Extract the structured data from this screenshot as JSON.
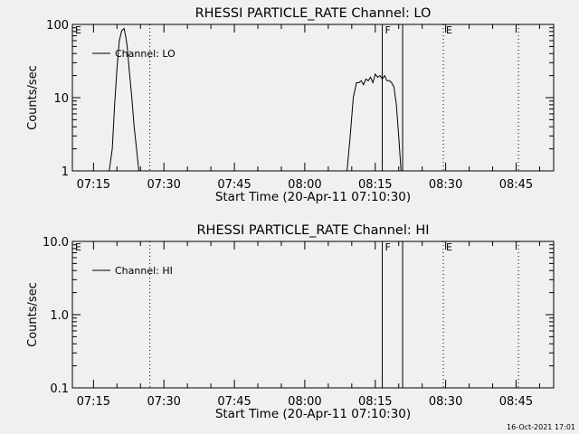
{
  "chart_data": [
    {
      "type": "line",
      "title": "RHESSI PARTICLE_RATE Channel: LO",
      "xlabel": "Start Time (20-Apr-11 07:10:30)",
      "ylabel": "Counts/sec",
      "y_scale": "log",
      "ylim": [
        1,
        100
      ],
      "y_ticks": [
        1,
        10,
        100
      ],
      "y_tick_labels": [
        "1",
        "10",
        "100"
      ],
      "xlim": [
        "07:10:30",
        "08:53:00"
      ],
      "x_ticks": [
        "07:15",
        "07:30",
        "07:45",
        "08:00",
        "08:15",
        "08:30",
        "08:45"
      ],
      "legend": {
        "position": "top-left",
        "entries": [
          "Channel: LO"
        ]
      },
      "grid": false,
      "markers": [
        {
          "time": "07:10:30",
          "label": "E",
          "style": "none"
        },
        {
          "time": "07:27:00",
          "label": "",
          "style": "dotted"
        },
        {
          "time": "08:16:30",
          "label": "F",
          "style": "solid"
        },
        {
          "time": "08:20:50",
          "label": "",
          "style": "solid"
        },
        {
          "time": "08:29:30",
          "label": "E",
          "style": "dotted"
        },
        {
          "time": "08:45:30",
          "label": "",
          "style": "dotted"
        }
      ],
      "series": [
        {
          "name": "Channel: LO",
          "x": [
            "07:18:20",
            "07:19:00",
            "07:19:30",
            "07:20:00",
            "07:20:30",
            "07:21:00",
            "07:21:30",
            "07:21:50",
            "07:22:10",
            "07:22:40",
            "07:23:10",
            "07:23:40",
            "07:24:10",
            "07:24:40",
            "07:25:10",
            "07:25:40",
            "08:09:00",
            "08:09:40",
            "08:10:20",
            "08:11:00",
            "08:11:30",
            "08:12:00",
            "08:12:30",
            "08:13:00",
            "08:13:30",
            "08:14:00",
            "08:14:30",
            "08:15:00",
            "08:15:30",
            "08:16:00",
            "08:16:30",
            "08:17:00",
            "08:17:30",
            "08:18:00",
            "08:18:30",
            "08:19:00",
            "08:19:30",
            "08:20:00",
            "08:20:30",
            "08:21:00"
          ],
          "y": [
            1,
            2,
            8,
            25,
            60,
            82,
            88,
            70,
            50,
            22,
            10,
            4,
            2,
            1,
            1,
            1,
            1,
            3,
            10,
            16,
            16,
            17,
            15,
            18,
            17,
            19,
            16,
            21,
            19,
            20,
            18,
            20,
            17,
            17,
            16,
            14,
            8,
            3,
            1,
            1
          ]
        }
      ]
    },
    {
      "type": "line",
      "title": "RHESSI PARTICLE_RATE Channel: HI",
      "xlabel": "Start Time (20-Apr-11 07:10:30)",
      "ylabel": "Counts/sec",
      "y_scale": "log",
      "ylim": [
        0.1,
        10
      ],
      "y_ticks": [
        0.1,
        1,
        10
      ],
      "y_tick_labels": [
        "0.1",
        "1.0",
        "10.0"
      ],
      "xlim": [
        "07:10:30",
        "08:53:00"
      ],
      "x_ticks": [
        "07:15",
        "07:30",
        "07:45",
        "08:00",
        "08:15",
        "08:30",
        "08:45"
      ],
      "legend": {
        "position": "top-left",
        "entries": [
          "Channel: HI"
        ]
      },
      "grid": false,
      "markers": [
        {
          "time": "07:10:30",
          "label": "E",
          "style": "none"
        },
        {
          "time": "07:27:00",
          "label": "",
          "style": "dotted"
        },
        {
          "time": "08:16:30",
          "label": "F",
          "style": "solid"
        },
        {
          "time": "08:20:50",
          "label": "",
          "style": "solid"
        },
        {
          "time": "08:29:30",
          "label": "E",
          "style": "dotted"
        },
        {
          "time": "08:45:30",
          "label": "",
          "style": "dotted"
        }
      ],
      "series": [
        {
          "name": "Channel: HI",
          "x": [],
          "y": []
        }
      ]
    }
  ],
  "footer": {
    "timestamp": "16-Oct-2021 17:01"
  }
}
